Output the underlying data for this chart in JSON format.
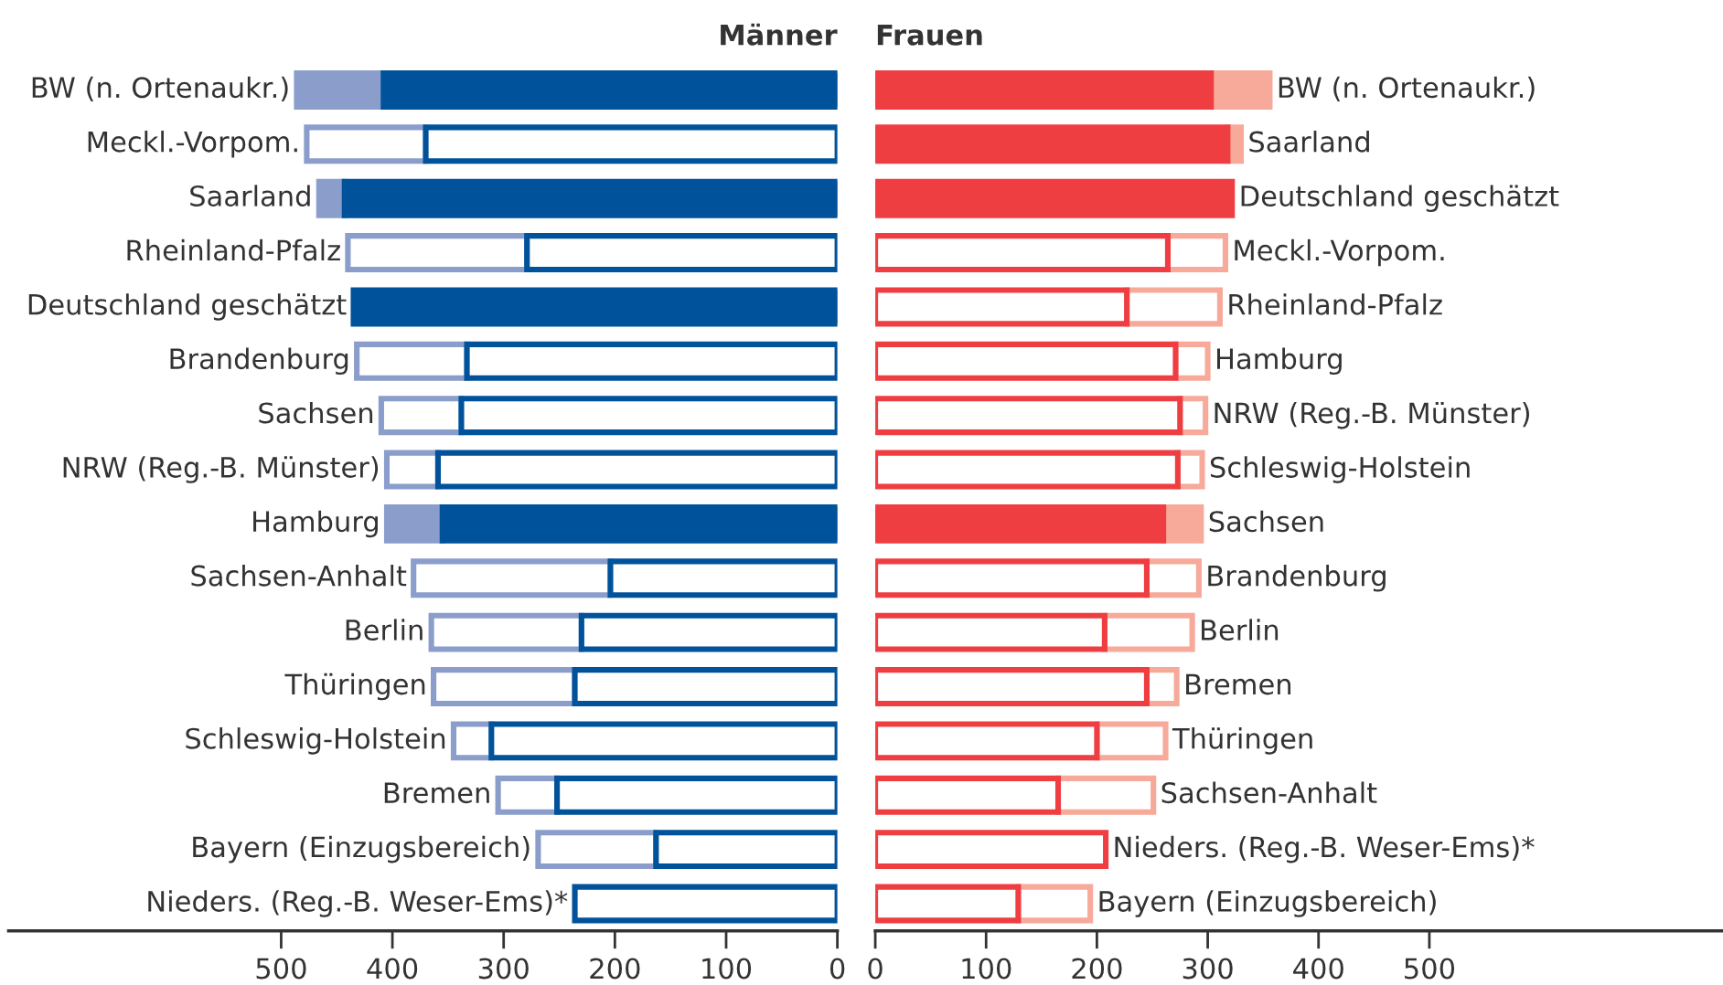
{
  "chart_data": [
    {
      "type": "bar",
      "orientation": "horizontal",
      "stacked": true,
      "title": "Männer",
      "categories": [
        "BW (n. Ortenaukr.)",
        "Meckl.-Vorpom.",
        "Saarland",
        "Rheinland-Pfalz",
        "Deutschland geschätzt",
        "Brandenburg",
        "Sachsen",
        "NRW (Reg.-B. Münster)",
        "Hamburg",
        "Sachsen-Anhalt",
        "Berlin",
        "Thüringen",
        "Schleswig-Holstein",
        "Bremen",
        "Bayern (Einzugsbereich)",
        "Nieders. (Reg.-B. Weser-Ems)*"
      ],
      "series": [
        {
          "color": "#00529b",
          "values": [
            408,
            370,
            443,
            279,
            435,
            333,
            338,
            359,
            355,
            204,
            230,
            236,
            311,
            252,
            163,
            236
          ],
          "colors": [
            "#00529b",
            "#ffffff",
            "#00529b",
            "#ffffff",
            "#00529b",
            "#ffffff",
            "#ffffff",
            "#ffffff",
            "#00529b",
            "#ffffff",
            "#ffffff",
            "#ffffff",
            "#ffffff",
            "#ffffff",
            "#ffffff",
            "#ffffff"
          ]
        },
        {
          "color": "#8a9dcb",
          "values": [
            78,
            107,
            23,
            161,
            0,
            99,
            72,
            46,
            50,
            177,
            135,
            127,
            34,
            53,
            106,
            0
          ],
          "colors": [
            "#8a9dcb",
            "#ffffff",
            "#8a9dcb",
            "#ffffff",
            "#8a9dcb",
            "#ffffff",
            "#ffffff",
            "#ffffff",
            "#8a9dcb",
            "#ffffff",
            "#ffffff",
            "#ffffff",
            "#ffffff",
            "#ffffff",
            "#ffffff",
            "#ffffff"
          ]
        }
      ],
      "xlim": [
        745,
        0
      ],
      "xticks": [
        500,
        400,
        300,
        200,
        100,
        0
      ],
      "tick_labels": "x",
      "grid": false,
      "legend": false
    },
    {
      "type": "bar",
      "orientation": "horizontal",
      "stacked": true,
      "title": "Frauen",
      "categories": [
        "BW (n. Ortenaukr.)",
        "Saarland",
        "Deutschland geschätzt",
        "Meckl.-Vorpom.",
        "Rheinland-Pfalz",
        "Hamburg",
        "NRW (Reg.-B. Münster)",
        "Schleswig-Holstein",
        "Sachsen",
        "Brandenburg",
        "Berlin",
        "Bremen",
        "Thüringen",
        "Sachsen-Anhalt",
        "Nieders. (Reg.-B. Weser-Ems)*",
        "Bayern (Einzugsbereich)"
      ],
      "series": [
        {
          "color": "#ef3e42",
          "values": [
            303,
            318,
            322,
            264,
            227,
            271,
            275,
            273,
            260,
            245,
            207,
            245,
            200,
            165,
            208,
            129
          ],
          "colors": [
            "#ef3e42",
            "#ef3e42",
            "#ef3e42",
            "#ffffff",
            "#ffffff",
            "#ffffff",
            "#ffffff",
            "#ffffff",
            "#ef3e42",
            "#ffffff",
            "#ffffff",
            "#ffffff",
            "#ffffff",
            "#ffffff",
            "#ffffff",
            "#ffffff"
          ]
        },
        {
          "color": "#f7a99a",
          "values": [
            53,
            12,
            0,
            52,
            84,
            29,
            23,
            22,
            34,
            47,
            79,
            27,
            62,
            86,
            0,
            65
          ],
          "colors": [
            "#f7a99a",
            "#f7a99a",
            "#f7a99a",
            "#ffffff",
            "#ffffff",
            "#ffffff",
            "#ffffff",
            "#ffffff",
            "#f7a99a",
            "#ffffff",
            "#ffffff",
            "#ffffff",
            "#ffffff",
            "#ffffff",
            "#ffffff",
            "#ffffff"
          ]
        }
      ],
      "xlim": [
        0,
        765
      ],
      "xticks": [
        0,
        100,
        200,
        300,
        400,
        500
      ],
      "tick_labels": "x",
      "grid": false,
      "legend": false
    }
  ]
}
